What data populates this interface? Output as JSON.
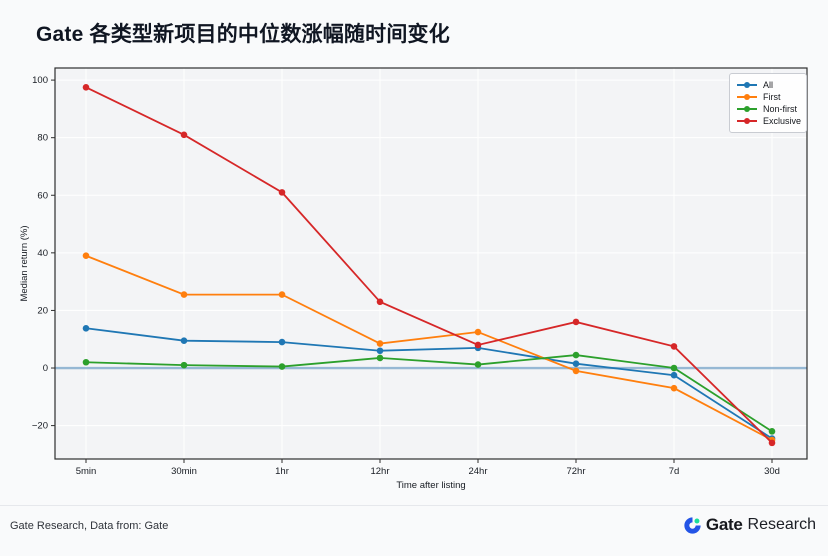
{
  "page": {
    "title": "Gate 各类型新项目的中位数涨幅随时间变化"
  },
  "chart_data": {
    "type": "line",
    "title": "Gate 各类型新项目的中位数涨幅随时间变化",
    "categories": [
      "5min",
      "30min",
      "1hr",
      "12hr",
      "24hr",
      "72hr",
      "7d",
      "30d"
    ],
    "series": [
      {
        "name": "All",
        "color": "#1f77b4",
        "values": [
          13.8,
          9.5,
          9,
          6,
          7,
          1.5,
          -2.5,
          -24.5
        ]
      },
      {
        "name": "First",
        "color": "#ff7f0e",
        "values": [
          39,
          25.5,
          25.5,
          8.5,
          12.5,
          -1,
          -7,
          -25
        ]
      },
      {
        "name": "Non-first",
        "color": "#2ca02c",
        "values": [
          2,
          1,
          0.5,
          3.5,
          1.2,
          4.5,
          0,
          -22
        ]
      },
      {
        "name": "Exclusive",
        "color": "#d62728",
        "values": [
          97.5,
          81,
          61,
          23,
          8,
          16,
          7.5,
          -26
        ]
      }
    ],
    "xlabel": "Time after listing",
    "ylabel": "Median return (%)",
    "ylim": [
      -31.6,
      104.2
    ],
    "yticks": [
      -20,
      0,
      20,
      40,
      60,
      80,
      100
    ],
    "baseline": {
      "y": 0,
      "color": "rgba(70,130,180,0.55)"
    },
    "grid": true,
    "legend_position": "top-right",
    "colors": {
      "grid": "#ffffff",
      "plot_bg": "#f3f4f6",
      "spine": "#2e2e2e"
    }
  },
  "footer": {
    "source_text": "Gate Research, Data from: Gate",
    "brand_bold": "Gate",
    "brand_regular": "Research",
    "logo_blue": "#2354E6",
    "logo_green": "#1BDE9C"
  }
}
